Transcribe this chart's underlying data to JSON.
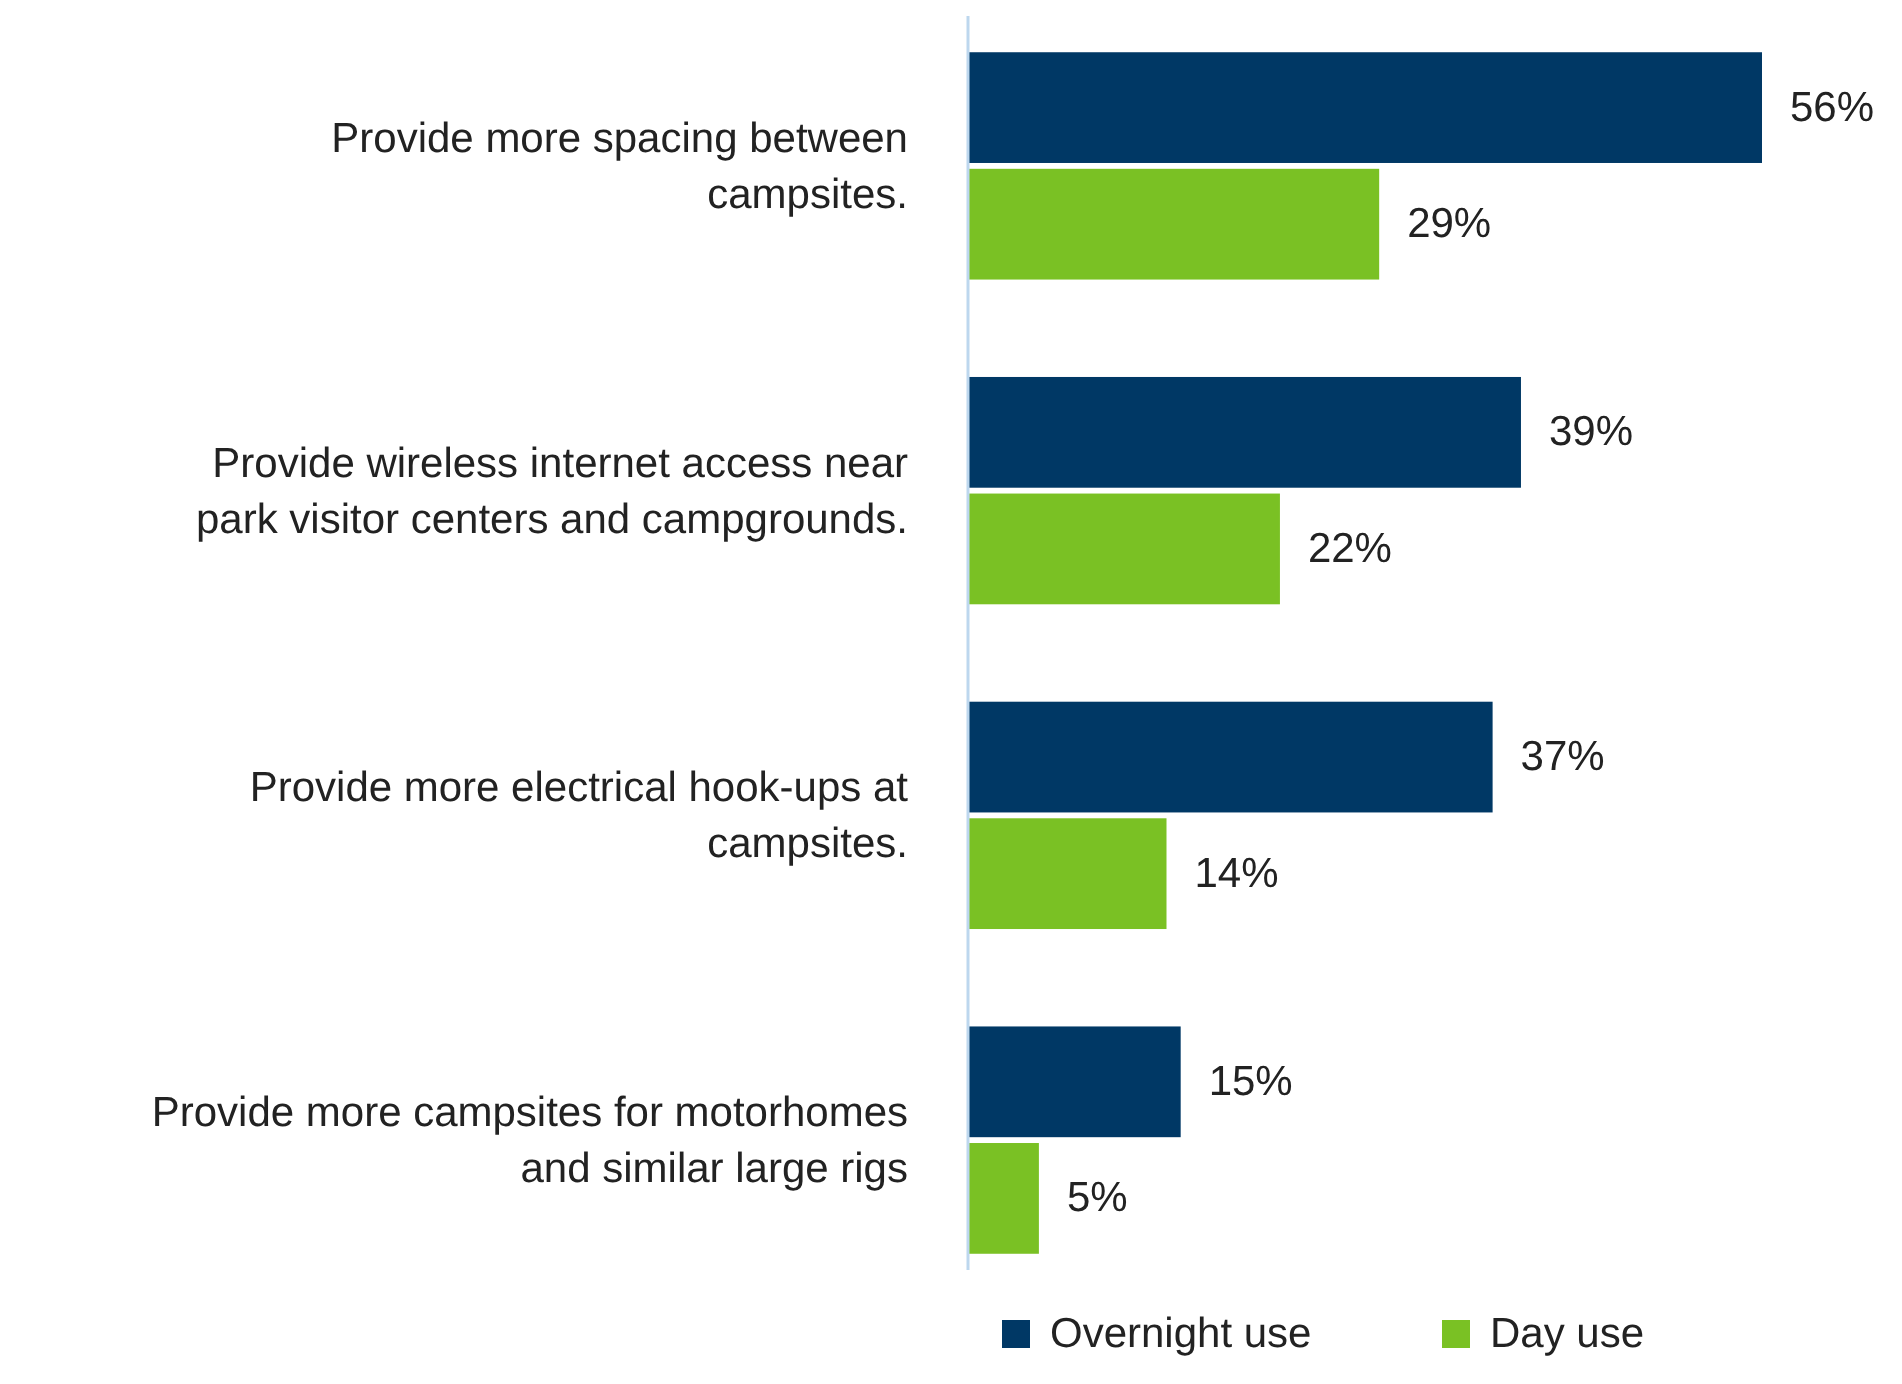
{
  "chart_data": {
    "type": "bar",
    "orientation": "horizontal",
    "categories": [
      "Provide more spacing between campsites.",
      "Provide wireless internet access near park visitor centers and campgrounds.",
      "Provide more electrical hook-ups at campsites.",
      "Provide more campsites for motorhomes and similar large rigs"
    ],
    "series": [
      {
        "name": "Overnight use",
        "color": "#003865",
        "values": [
          56,
          39,
          37,
          15
        ],
        "value_labels": [
          "56%",
          "39%",
          "37%",
          "15%"
        ]
      },
      {
        "name": "Day use",
        "color": "#7ac124",
        "values": [
          29,
          22,
          14,
          5
        ],
        "value_labels": [
          "29%",
          "22%",
          "14%",
          "5%"
        ]
      }
    ],
    "legend": "bottom"
  }
}
